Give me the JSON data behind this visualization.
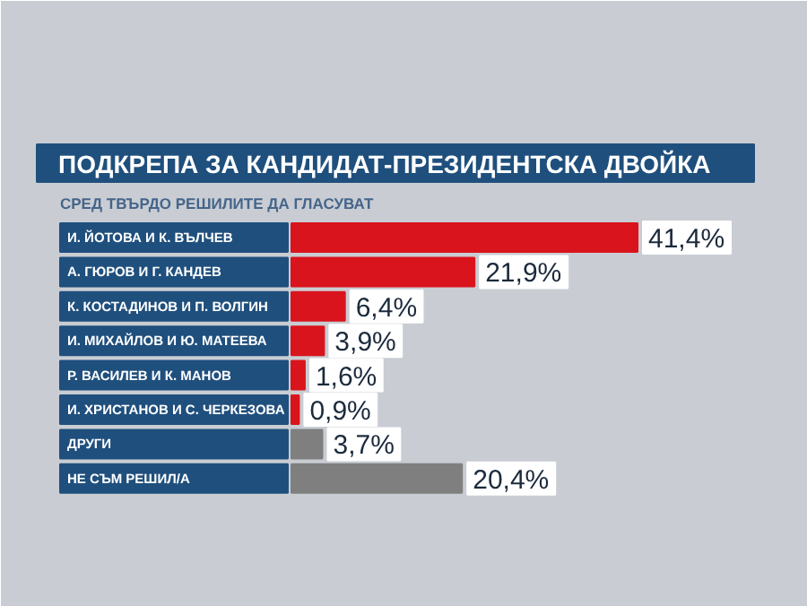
{
  "chart_data": {
    "type": "bar",
    "orientation": "horizontal",
    "title": "ПОДКРЕПА ЗА КАНДИДАТ-ПРЕЗИДЕНТСКА ДВОЙКА",
    "subtitle": "СРЕД ТВЪРДО РЕШИЛИТЕ ДА ГЛАСУВАТ",
    "categories": [
      "И. ЙОТОВА И К. ВЪЛЧЕВ",
      "А. ГЮРОВ И Г. КАНДЕВ",
      "К. КОСТАДИНОВ И П. ВОЛГИН",
      "И. МИХАЙЛОВ И Ю. МАТЕЕВА",
      "Р. ВАСИЛЕВ И К. МАНОВ",
      "И. ХРИСТАНОВ И С. ЧЕРКЕЗОВА",
      "ДРУГИ",
      "НЕ СЪМ РЕШИЛ/А"
    ],
    "values": [
      41.4,
      21.9,
      6.4,
      3.9,
      1.6,
      0.9,
      3.7,
      20.4
    ],
    "colors": [
      "#d9141c",
      "#d9141c",
      "#d9141c",
      "#d9141c",
      "#d9141c",
      "#d9141c",
      "#7f7f7f",
      "#7f7f7f"
    ],
    "value_labels": [
      "41,4%",
      "21,9%",
      "6,4%",
      "3,9%",
      "1,6%",
      "0,9%",
      "3,7%",
      "20,4%"
    ]
  }
}
